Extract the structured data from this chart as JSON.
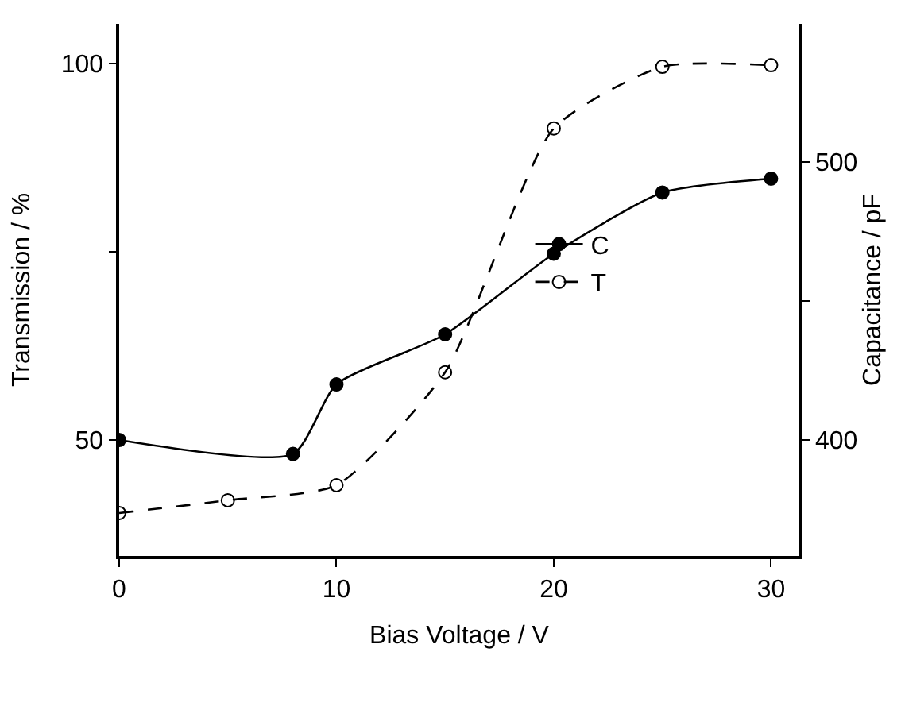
{
  "chart_data": {
    "type": "line",
    "xlabel": "Bias Voltage / V",
    "ylabel": "Transmission / %",
    "y2label": "Capacitance / pF",
    "xlim": [
      0,
      31.3
    ],
    "xticks": [
      0,
      10,
      20,
      30
    ],
    "ylim": [
      34.6,
      105.3
    ],
    "yticks": [
      50,
      {
        "value": 75,
        "label": null
      },
      100
    ],
    "y2lim": [
      358.3,
      549.7
    ],
    "y2ticks": [
      400,
      {
        "value": 450,
        "label": null
      },
      500
    ],
    "legend": "right",
    "series": [
      {
        "name": "C",
        "color": "#000000",
        "axis": "y2",
        "marker": "circle",
        "line_style": "solid",
        "x": [
          0,
          8,
          10,
          15,
          20,
          25,
          30
        ],
        "values": [
          400,
          395,
          420,
          438,
          467,
          489,
          494
        ]
      },
      {
        "name": "T",
        "color": "#000000",
        "axis": "y",
        "marker": "circle-open",
        "line_style": "dashed",
        "x": [
          0,
          5,
          10,
          15,
          20,
          25,
          30
        ],
        "values": [
          40.3,
          42,
          44,
          59,
          91.4,
          99.6,
          99.8
        ]
      }
    ]
  }
}
